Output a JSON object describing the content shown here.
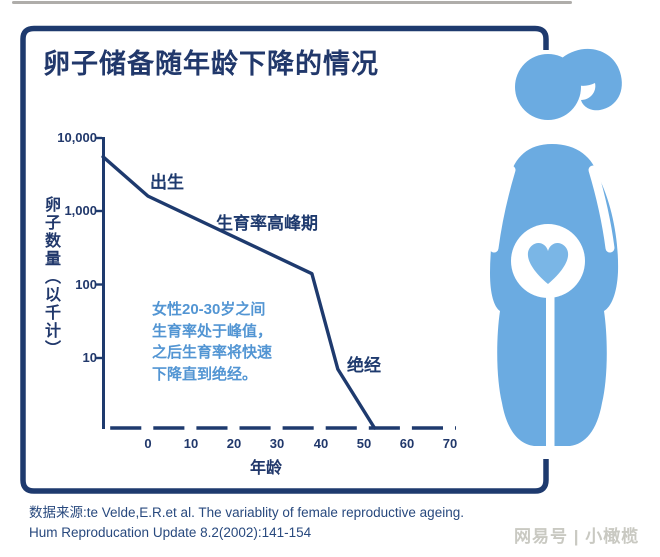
{
  "title": "卵子储备随年龄下降的情况",
  "source_citation": "数据来源:te Velde,E.R.et al. The variablity of female reproductive ageing.\nHum Reproducation Update 8.2(2002):141-154",
  "watermark": "网易号 | 小橄榄",
  "figure_illustration": "pregnant-woman-silhouette-with-heart-in-belly",
  "colors": {
    "navy": "#1e3a6e",
    "annotation_blue": "#5295d3",
    "figure_blue": "#6babe1",
    "heart_blue": "#7ab6e6",
    "watermark_gray": "#c9c9c2"
  },
  "chart_data": {
    "type": "line",
    "title": "卵子储备随年龄下降的情况",
    "xlabel": "年龄",
    "ylabel": "卵子数量（以千计）",
    "x_ticks": [
      "0",
      "10",
      "20",
      "30",
      "40",
      "50",
      "60",
      "70"
    ],
    "y_ticks": [
      "10,000",
      "1,000",
      "100",
      "10"
    ],
    "y_scale": "log",
    "xlim": [
      -10,
      70
    ],
    "ylim": [
      1,
      10000
    ],
    "grid": false,
    "legend": false,
    "series": [
      {
        "name": "卵子数量(以千计)",
        "points": [
          {
            "x": -10.4,
            "y": 5500
          },
          {
            "x": 0,
            "y": 1600,
            "label": "出生"
          },
          {
            "x": 38,
            "y": 140,
            "label": "生育率高峰期"
          },
          {
            "x": 44,
            "y": 7
          },
          {
            "x": 52.5,
            "y": 1.1,
            "label": "绝经"
          }
        ]
      }
    ],
    "annotations": {
      "birth": "出生",
      "peak_fertility": "生育率高峰期",
      "menopause": "绝经",
      "note": "女性20-30岁之间\n生育率处于峰值，\n之后生育率将快速\n下降直到绝经。"
    }
  }
}
